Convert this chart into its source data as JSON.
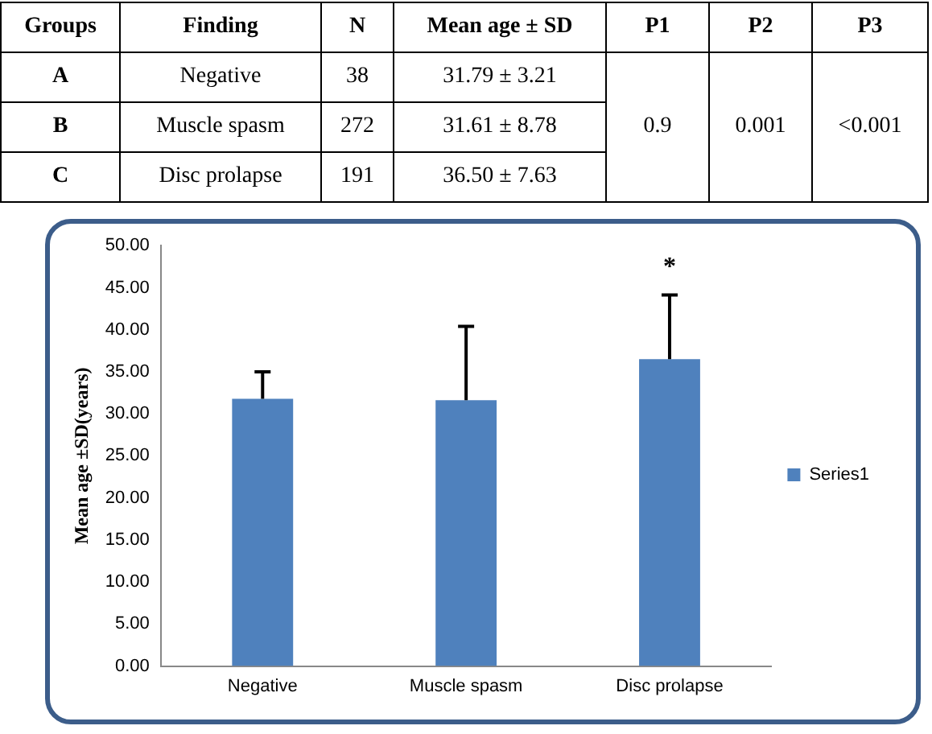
{
  "chart_data": [
    {
      "type": "other",
      "annotations": [
        "Groups",
        "Finding",
        "N",
        "Mean age ± SD",
        "P1",
        "P2",
        "P3",
        "A",
        "Negative",
        "38",
        "31.79 ± 3.21",
        "B",
        "Muscle spasm",
        "272",
        "31.61 ± 8.78",
        "C",
        "Disc prolapse",
        "191",
        "36.50 ± 7.63",
        "0.9",
        "0.001",
        "<0.001"
      ]
    },
    {
      "type": "bar",
      "categories": [
        "Negative",
        "Muscle spasm",
        "Disc prolapse"
      ],
      "series": [
        {
          "name": "Series1",
          "color": "#4f81bd",
          "values": [
            31.79,
            31.61,
            36.5
          ],
          "errors": [
            [
              31.79,
              35.0
            ],
            [
              31.61,
              40.39
            ],
            [
              36.5,
              44.13
            ]
          ]
        }
      ],
      "ylabel": "Mean age ±SD(years)",
      "ylim": [
        0,
        50
      ],
      "yticks": [
        {
          "value": 0,
          "label": "0.00"
        },
        {
          "value": 5,
          "label": "5.00"
        },
        {
          "value": 10,
          "label": "10.00"
        },
        {
          "value": 15,
          "label": "15.00"
        },
        {
          "value": 20,
          "label": "20.00"
        },
        {
          "value": 25,
          "label": "25.00"
        },
        {
          "value": 30,
          "label": "30.00"
        },
        {
          "value": 35,
          "label": "35.00"
        },
        {
          "value": 40,
          "label": "40.00"
        },
        {
          "value": 45,
          "label": "45.00"
        },
        {
          "value": 50,
          "label": "50.00"
        }
      ],
      "annotations": [
        "*"
      ],
      "legend": "right",
      "grid": false
    }
  ]
}
